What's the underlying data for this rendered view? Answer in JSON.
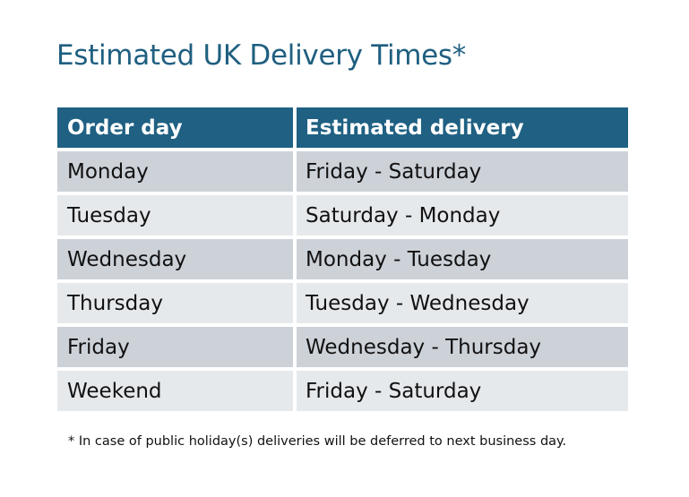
{
  "title": "Estimated UK Delivery Times*",
  "table": {
    "headers": [
      "Order day",
      "Estimated delivery"
    ],
    "rows": [
      [
        "Monday",
        "Friday - Saturday"
      ],
      [
        "Tuesday",
        "Saturday - Monday"
      ],
      [
        "Wednesday",
        "Monday - Tuesday"
      ],
      [
        "Thursday",
        "Tuesday - Wednesday"
      ],
      [
        "Friday",
        "Wednesday - Thursday"
      ],
      [
        "Weekend",
        "Friday - Saturday"
      ]
    ]
  },
  "footnote": "* In case of public holiday(s) deliveries will be deferred to next business day.",
  "colors": {
    "header": "#1f6083",
    "title": "#1f5f80",
    "row_dark": "#cdd1d8",
    "row_light": "#e6e9ec"
  }
}
